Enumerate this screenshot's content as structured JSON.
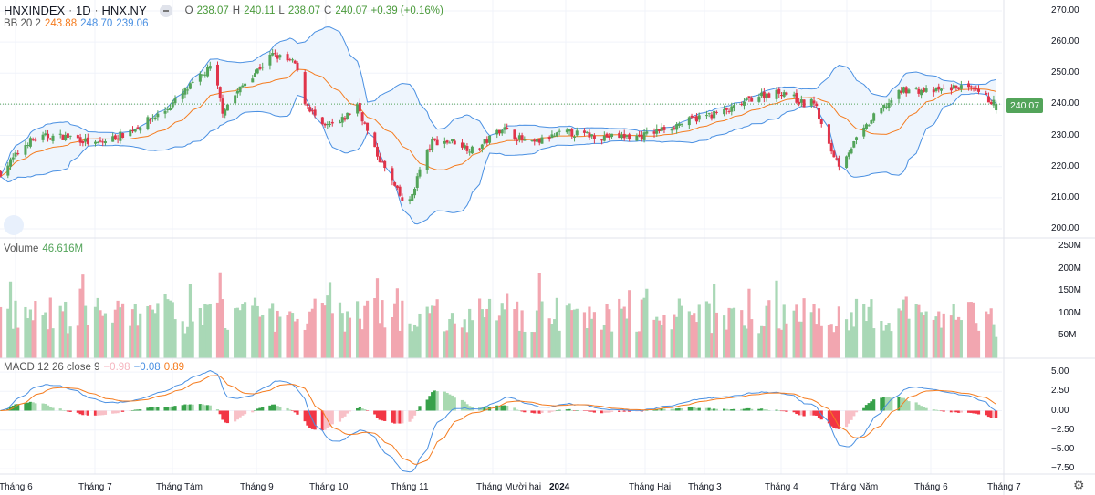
{
  "header": {
    "symbol": "HNXINDEX",
    "interval": "1D",
    "exchange": "HNX.NY",
    "open_label": "O",
    "open": "238.07",
    "high_label": "H",
    "high": "240.11",
    "low_label": "L",
    "low": "238.07",
    "close_label": "C",
    "close": "240.07",
    "change": "+0.39 (+0.16%)"
  },
  "bb_legend": {
    "name": "BB 20 2",
    "basis": "243.88",
    "upper": "248.70",
    "lower": "239.06"
  },
  "volume_legend": {
    "name": "Volume",
    "value": "46.616M"
  },
  "macd_legend": {
    "name": "MACD 12 26 close 9",
    "hist": "−0.98",
    "macd": "−0.08",
    "signal": "0.89"
  },
  "last_price_tag": "240.07",
  "price_axis": [
    "270.00",
    "260.00",
    "250.00",
    "240.00",
    "230.00",
    "220.00",
    "210.00",
    "200.00"
  ],
  "volume_axis": [
    "250M",
    "200M",
    "150M",
    "100M",
    "50M"
  ],
  "macd_axis": [
    "5.00",
    "2.50",
    "0.00",
    "−2.50",
    "−5.00",
    "−7.50"
  ],
  "time_axis": [
    "Tháng 6",
    "Tháng 7",
    "Tháng Tám",
    "Tháng 9",
    "Tháng 10",
    "Tháng 11",
    "Tháng Mười hai",
    "2024",
    "Tháng Hai",
    "Tháng 3",
    "Tháng 4",
    "Tháng Năm",
    "Tháng 6",
    "Tháng 7"
  ],
  "icons": {
    "settings": "gear-icon",
    "hide_legend": "minus-icon",
    "logo": "tradingview-cloud-icon"
  },
  "colors": {
    "up": "#53a45a",
    "down": "#e0344a",
    "bb_band": "#4a90e2",
    "bb_basis": "#f57c1f",
    "macd": "#4a90e2",
    "signal": "#f57c1f",
    "band_fill": "#eef5fd"
  },
  "chart_data": {
    "type": "candlestick",
    "indicators": [
      "Bollinger Bands (20, 2)",
      "Volume",
      "MACD (12, 26, close, 9)"
    ],
    "grid": true,
    "ylim": [
      200,
      270
    ],
    "volume_ylim": [
      0,
      250
    ],
    "macd_ylim": [
      -7.5,
      5
    ],
    "approx_close_path": [
      {
        "date": "2023-05-26",
        "close": 218
      },
      {
        "date": "2023-06-06",
        "close": 228
      },
      {
        "date": "2023-06-13",
        "close": 229.6
      },
      {
        "date": "2023-06-24",
        "close": 229.6
      },
      {
        "date": "2023-07-03",
        "close": 227
      },
      {
        "date": "2023-07-16",
        "close": 231
      },
      {
        "date": "2023-07-31",
        "close": 238
      },
      {
        "date": "2023-08-10",
        "close": 245.7
      },
      {
        "date": "2023-08-19",
        "close": 252.4
      },
      {
        "date": "2023-08-23",
        "close": 238
      },
      {
        "date": "2023-09-01",
        "close": 247
      },
      {
        "date": "2023-09-12",
        "close": 256
      },
      {
        "date": "2023-09-21",
        "close": 253
      },
      {
        "date": "2023-09-25",
        "close": 241
      },
      {
        "date": "2023-10-02",
        "close": 232.5
      },
      {
        "date": "2023-10-09",
        "close": 234
      },
      {
        "date": "2023-10-16",
        "close": 240
      },
      {
        "date": "2023-10-22",
        "close": 226.7
      },
      {
        "date": "2023-11-02",
        "close": 210.5
      },
      {
        "date": "2023-11-05",
        "close": 206
      },
      {
        "date": "2023-11-10",
        "close": 219
      },
      {
        "date": "2023-11-15",
        "close": 228
      },
      {
        "date": "2023-11-24",
        "close": 228
      },
      {
        "date": "2023-12-02",
        "close": 225
      },
      {
        "date": "2023-12-13",
        "close": 232.5
      },
      {
        "date": "2023-12-24",
        "close": 227
      },
      {
        "date": "2024-01-07",
        "close": 231
      },
      {
        "date": "2024-01-22",
        "close": 229.6
      },
      {
        "date": "2024-02-06",
        "close": 229.6
      },
      {
        "date": "2024-02-17",
        "close": 232.5
      },
      {
        "date": "2024-03-02",
        "close": 236
      },
      {
        "date": "2024-03-13",
        "close": 238
      },
      {
        "date": "2024-03-24",
        "close": 242.8
      },
      {
        "date": "2024-04-04",
        "close": 244
      },
      {
        "date": "2024-04-12",
        "close": 240
      },
      {
        "date": "2024-04-16",
        "close": 241
      },
      {
        "date": "2024-04-21",
        "close": 228
      },
      {
        "date": "2024-04-26",
        "close": 220.8
      },
      {
        "date": "2024-05-04",
        "close": 229.6
      },
      {
        "date": "2024-05-11",
        "close": 237
      },
      {
        "date": "2024-05-22",
        "close": 244.8
      },
      {
        "date": "2024-06-02",
        "close": 244
      },
      {
        "date": "2024-06-13",
        "close": 245.7
      },
      {
        "date": "2024-06-20",
        "close": 244
      },
      {
        "date": "2024-06-28",
        "close": 240.07
      }
    ]
  }
}
